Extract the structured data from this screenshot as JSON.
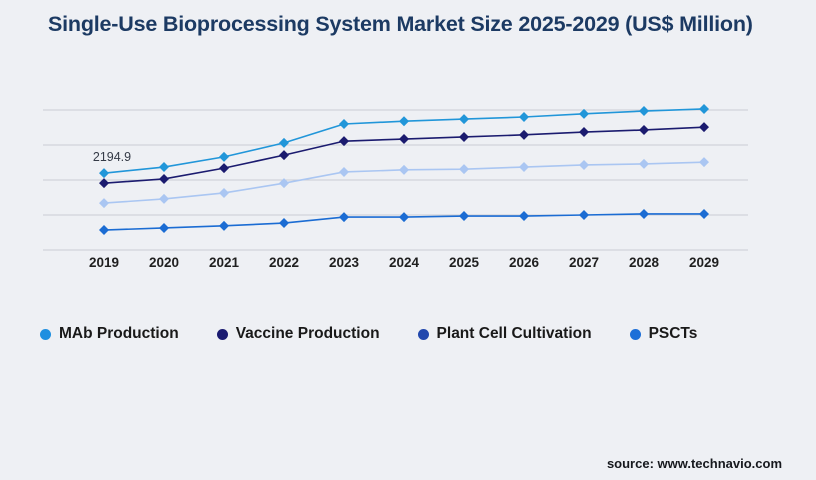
{
  "title": "Single-Use Bioprocessing System Market Size 2025-2029 (US$ Million)",
  "source": "source: www.technavio.com",
  "colors": {
    "background": "#eef0f4",
    "title_text": "#1c3a63",
    "gridline": "#c9cdd4",
    "axis_label_text": "#1f1f1f",
    "annotation_text": "#343a46",
    "legend_text": "#191919",
    "source_text": "#16181d"
  },
  "chart_data": {
    "type": "line",
    "title": "Single-Use Bioprocessing System Market Size 2025-2029 (US$ Million)",
    "categories": [
      "2019",
      "2020",
      "2021",
      "2022",
      "2023",
      "2024",
      "2025",
      "2026",
      "2027",
      "2028",
      "2029"
    ],
    "series": [
      {
        "name": "MAb Production",
        "line_color": "#2196d9",
        "legend_color": "#1e8fe0",
        "values": [
          2194.9,
          2370,
          2660,
          3060,
          3600,
          3680,
          3740,
          3800,
          3890,
          3970,
          4030
        ]
      },
      {
        "name": "Vaccine Production",
        "line_color": "#1b1b6f",
        "legend_color": "#1a1a70",
        "values": [
          1910,
          2030,
          2340,
          2710,
          3110,
          3170,
          3230,
          3290,
          3370,
          3430,
          3510
        ]
      },
      {
        "name": "Plant Cell Cultivation",
        "line_color": "#aac6f2",
        "legend_color": "#2248ad",
        "values": [
          1340,
          1460,
          1630,
          1910,
          2230,
          2290,
          2310,
          2370,
          2430,
          2460,
          2510
        ]
      },
      {
        "name": "PSCTs",
        "line_color": "#1b6cd3",
        "legend_color": "#1c6fd8",
        "values": [
          570,
          630,
          690,
          770,
          940,
          940,
          970,
          970,
          1000,
          1030,
          1030
        ]
      }
    ],
    "xlabel": "",
    "ylabel": "US$ Million",
    "ylim": [
      0,
      4000
    ],
    "grid": true,
    "gridline_values": [
      0,
      1000,
      2000,
      3000,
      4000
    ],
    "y_tick_labels_shown": false,
    "marker_shape": "diamond",
    "legend_position": "bottom",
    "annotations": [
      {
        "series": "MAb Production",
        "category": "2019",
        "text": "2194.9"
      }
    ]
  }
}
